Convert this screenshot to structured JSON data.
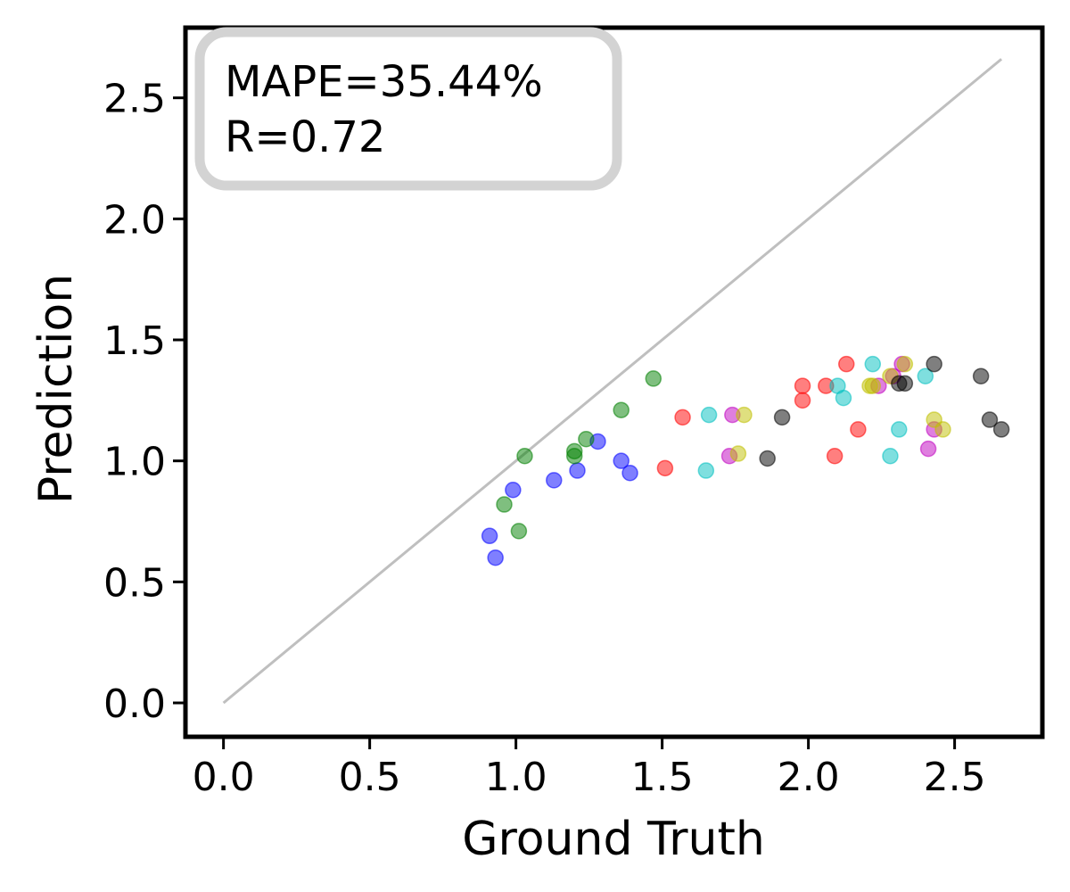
{
  "chart_data": {
    "type": "scatter",
    "xlabel": "Ground Truth",
    "ylabel": "Prediction",
    "xlim": [
      -0.13,
      2.8
    ],
    "ylim": [
      -0.14,
      2.79
    ],
    "xticks": [
      "0.0",
      "0.5",
      "1.0",
      "1.5",
      "2.0",
      "2.5"
    ],
    "yticks": [
      "0.0",
      "0.5",
      "1.0",
      "1.5",
      "2.0",
      "2.5"
    ],
    "grid": false,
    "identity_line": {
      "from": [
        0,
        0
      ],
      "to": [
        2.66,
        2.66
      ],
      "color": "#bfbfbf"
    },
    "annotation": {
      "lines": [
        "MAPE=35.44%",
        "R=0.72"
      ],
      "placement": "top-left",
      "border_color": "#d3d3d3"
    },
    "series": [
      {
        "color": "#0000ff",
        "points": [
          [
            0.91,
            0.69
          ],
          [
            0.93,
            0.6
          ],
          [
            0.99,
            0.88
          ],
          [
            1.13,
            0.92
          ],
          [
            1.21,
            0.96
          ],
          [
            1.28,
            1.08
          ],
          [
            1.36,
            1.0
          ],
          [
            1.39,
            0.95
          ]
        ]
      },
      {
        "color": "#008000",
        "points": [
          [
            0.96,
            0.82
          ],
          [
            1.01,
            0.71
          ],
          [
            1.03,
            1.02
          ],
          [
            1.2,
            1.02
          ],
          [
            1.2,
            1.04
          ],
          [
            1.24,
            1.09
          ],
          [
            1.36,
            1.21
          ],
          [
            1.47,
            1.34
          ]
        ]
      },
      {
        "color": "#ff0000",
        "points": [
          [
            1.51,
            0.97
          ],
          [
            1.57,
            1.18
          ],
          [
            1.98,
            1.25
          ],
          [
            1.98,
            1.31
          ],
          [
            2.06,
            1.31
          ],
          [
            2.09,
            1.02
          ],
          [
            2.13,
            1.4
          ],
          [
            2.17,
            1.13
          ]
        ]
      },
      {
        "color": "#00bfbf",
        "points": [
          [
            1.65,
            0.96
          ],
          [
            1.66,
            1.19
          ],
          [
            2.1,
            1.31
          ],
          [
            2.12,
            1.26
          ],
          [
            2.22,
            1.4
          ],
          [
            2.28,
            1.02
          ],
          [
            2.31,
            1.13
          ],
          [
            2.4,
            1.35
          ]
        ]
      },
      {
        "color": "#bf00bf",
        "points": [
          [
            1.73,
            1.02
          ],
          [
            1.74,
            1.19
          ],
          [
            2.24,
            1.31
          ],
          [
            2.29,
            1.35
          ],
          [
            2.32,
            1.4
          ],
          [
            2.41,
            1.05
          ],
          [
            2.43,
            1.13
          ]
        ]
      },
      {
        "color": "#bfbf00",
        "points": [
          [
            1.76,
            1.03
          ],
          [
            1.78,
            1.19
          ],
          [
            2.21,
            1.31
          ],
          [
            2.22,
            1.31
          ],
          [
            2.28,
            1.35
          ],
          [
            2.33,
            1.4
          ],
          [
            2.43,
            1.17
          ],
          [
            2.46,
            1.13
          ]
        ]
      },
      {
        "color": "#000000",
        "points": [
          [
            1.86,
            1.01
          ],
          [
            1.91,
            1.18
          ],
          [
            2.31,
            1.32
          ],
          [
            2.33,
            1.32
          ],
          [
            2.43,
            1.4
          ],
          [
            2.59,
            1.35
          ],
          [
            2.62,
            1.17
          ],
          [
            2.66,
            1.13
          ]
        ]
      }
    ]
  }
}
